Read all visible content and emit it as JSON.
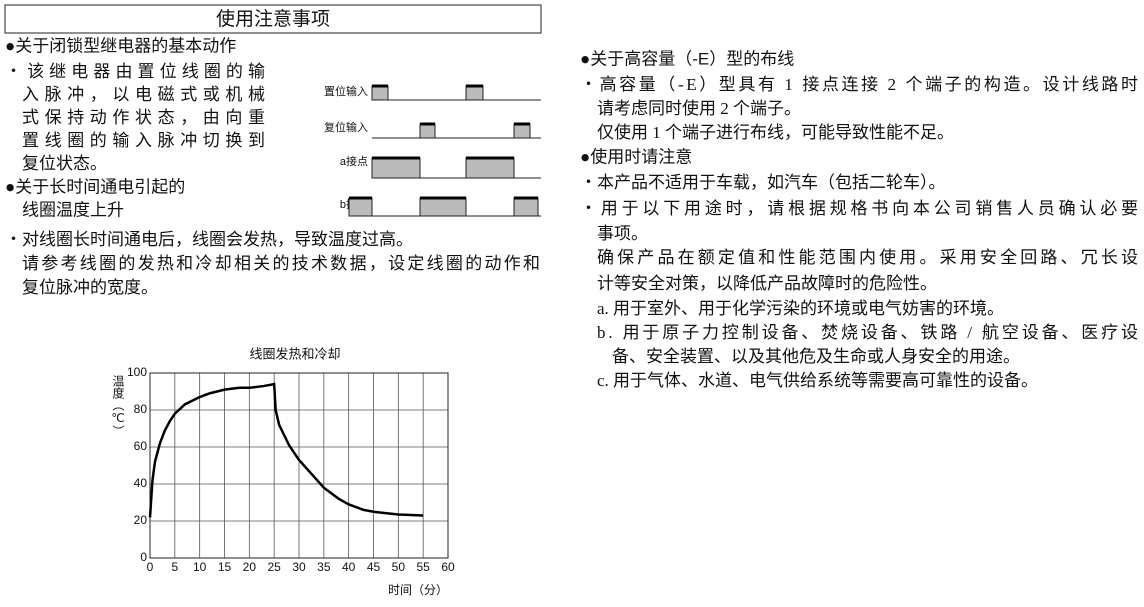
{
  "header": {
    "title": "使用注意事项"
  },
  "left": {
    "section1": {
      "heading": "●关于闭锁型继电器的基本动作",
      "lines": [
        "・该继电器由置位线圈的输",
        "入脉冲，以电磁式或机械",
        "式保持动作状态，由向重",
        "置线圈的输入脉冲切换到",
        "复位状态。"
      ]
    },
    "timing_labels": [
      "置位输入",
      "复位输入",
      "a接点",
      "b接点"
    ],
    "section2": {
      "heading_lines": [
        "●关于长时间通电引起的",
        "线圈温度上升"
      ],
      "lines": [
        "・对线圈长时间通电后，线圈会发热，导致温度过高。",
        "请参考线圈的发热和冷却相关的技术数据，设定线圈的动作和",
        "复位脉冲的宽度。"
      ]
    }
  },
  "right": {
    "section3": {
      "heading": "●关于高容量（-E）型的布线",
      "lines": [
        "・高容量（-E）型具有 1 接点连接 2 个端子的构造。设计线路时",
        "请考虑同时使用 2 个端子。",
        "仅使用 1 个端子进行布线，可能导致性能不足。"
      ]
    },
    "section4": {
      "heading": "●使用时请注意",
      "lines": [
        "・本产品不适用于车载，如汽车（包括二轮车）。",
        "・用于以下用途时，请根据规格书向本公司销售人员确认必要",
        "事项。",
        "确保产品在额定值和性能范围内使用。采用安全回路、冗长设",
        "计等安全对策，以降低产品故障时的危险性。",
        "a. 用于室外、用于化学污染的环境或电气妨害的环境。",
        "b. 用于原子力控制设备、焚烧设备、铁路 / 航空设备、医疗设",
        "备、安全装置、以及其他危及生命或人身安全的用途。",
        "c. 用于气体、水道、电气供给系统等需要高可靠性的设备。"
      ]
    }
  },
  "chart_data": {
    "type": "line",
    "title": "线圈发热和冷却",
    "y_label": "温度（℃）",
    "x_label": "时间（分）",
    "x": [
      0,
      0.5,
      1,
      2,
      3,
      4,
      5,
      7,
      10,
      12,
      15,
      18,
      20,
      23,
      25,
      25.3,
      26,
      28,
      30,
      33,
      35,
      38,
      40,
      43,
      45,
      50,
      55
    ],
    "values": [
      22,
      42,
      52,
      62,
      69,
      74,
      78,
      83,
      87,
      89,
      91,
      92,
      92,
      93,
      94,
      80,
      72,
      61,
      53,
      44,
      38,
      32,
      29,
      26,
      25,
      23.5,
      23
    ],
    "color": "#000000",
    "xlim": [
      0,
      60
    ],
    "ylim": [
      0,
      100
    ],
    "xticks": [
      0,
      5,
      10,
      15,
      20,
      25,
      30,
      35,
      40,
      45,
      50,
      55,
      60
    ],
    "yticks": [
      0,
      20,
      40,
      60,
      80,
      100
    ],
    "grid": true
  }
}
